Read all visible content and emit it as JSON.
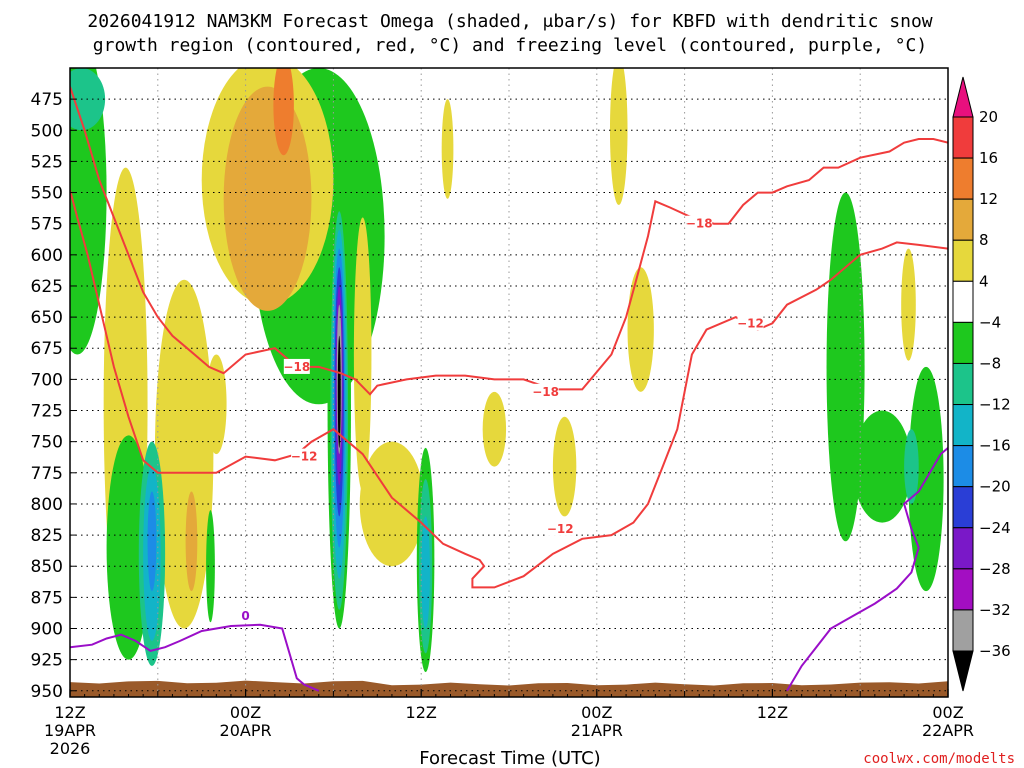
{
  "chart_data": {
    "type": "heatmap",
    "title_line1": "2026041912 NAM3KM Forecast Omega (shaded, μbar/s) for KBFD with dendritic snow",
    "title_line2": "growth region (contoured, red, °C) and freezing level (contoured, purple, °C)",
    "xlabel": "Forecast Time (UTC)",
    "credit": "coolwx.com/modelts",
    "x_ticks": [
      {
        "h": 0,
        "l1": "12Z",
        "l2": "19APR",
        "l3": "2026"
      },
      {
        "h": 12,
        "l1": "00Z",
        "l2": "20APR",
        "l3": ""
      },
      {
        "h": 24,
        "l1": "12Z",
        "l2": "",
        "l3": ""
      },
      {
        "h": 36,
        "l1": "00Z",
        "l2": "21APR",
        "l3": ""
      },
      {
        "h": 48,
        "l1": "12Z",
        "l2": "",
        "l3": ""
      },
      {
        "h": 60,
        "l1": "00Z",
        "l2": "22APR",
        "l3": ""
      }
    ],
    "xlim": [
      0,
      60
    ],
    "ylim": [
      955,
      450
    ],
    "y_ticks": [
      475,
      500,
      525,
      550,
      575,
      600,
      625,
      650,
      675,
      700,
      725,
      750,
      775,
      800,
      825,
      850,
      875,
      900,
      925,
      950
    ],
    "colorbar": {
      "levels": [
        -36,
        -32,
        -28,
        -24,
        -20,
        -16,
        -12,
        -8,
        -4,
        4,
        8,
        12,
        16,
        20
      ],
      "labels": [
        "20",
        "16",
        "12",
        "8",
        "4",
        "−4",
        "−8",
        "−12",
        "−16",
        "−20",
        "−24",
        "−28",
        "−32",
        "−36"
      ],
      "colors": [
        {
          "min": 20,
          "max": 24,
          "color": "#e8107e"
        },
        {
          "min": 16,
          "max": 20,
          "color": "#f03c3c"
        },
        {
          "min": 12,
          "max": 16,
          "color": "#ee7d2e"
        },
        {
          "min": 8,
          "max": 12,
          "color": "#e4a93a"
        },
        {
          "min": 4,
          "max": 8,
          "color": "#e6d83c"
        },
        {
          "min": -4,
          "max": 4,
          "color": "#ffffff"
        },
        {
          "min": -8,
          "max": -4,
          "color": "#1ec81e"
        },
        {
          "min": -12,
          "max": -8,
          "color": "#1cc48a"
        },
        {
          "min": -16,
          "max": -12,
          "color": "#12b4c8"
        },
        {
          "min": -20,
          "max": -16,
          "color": "#1c8ce6"
        },
        {
          "min": -24,
          "max": -20,
          "color": "#2a3ed6"
        },
        {
          "min": -28,
          "max": -24,
          "color": "#7a18c8"
        },
        {
          "min": -32,
          "max": -28,
          "color": "#a30ec2"
        },
        {
          "min": -36,
          "max": -32,
          "color": "#a0a0a0"
        },
        {
          "min": -40,
          "max": -36,
          "color": "#000000"
        }
      ]
    },
    "omega_regions": [
      {
        "value": -8,
        "hx": 0.5,
        "p": 550,
        "rx": 2.0,
        "ry": 130
      },
      {
        "value": -10,
        "hx": 0.8,
        "p": 475,
        "rx": 1.6,
        "ry": 25
      },
      {
        "value": -6,
        "hx": 17.0,
        "p": 585,
        "rx": 4.5,
        "ry": 135
      },
      {
        "value": 6,
        "hx": 13.5,
        "p": 540,
        "rx": 4.5,
        "ry": 100
      },
      {
        "value": 9,
        "hx": 13.5,
        "p": 555,
        "rx": 3.0,
        "ry": 90
      },
      {
        "value": 13,
        "hx": 14.6,
        "p": 480,
        "rx": 0.7,
        "ry": 40
      },
      {
        "value": 6,
        "hx": 3.8,
        "p": 720,
        "rx": 1.5,
        "ry": 190
      },
      {
        "value": 6,
        "hx": 7.8,
        "p": 760,
        "rx": 2.0,
        "ry": 140
      },
      {
        "value": 6,
        "hx": 10.0,
        "p": 720,
        "rx": 0.7,
        "ry": 40
      },
      {
        "value": 6,
        "hx": 20.0,
        "p": 680,
        "rx": 0.6,
        "ry": 110
      },
      {
        "value": 6,
        "hx": 22.0,
        "p": 800,
        "rx": 2.2,
        "ry": 50
      },
      {
        "value": 6,
        "hx": 25.8,
        "p": 515,
        "rx": 0.4,
        "ry": 40
      },
      {
        "value": 6,
        "hx": 29.0,
        "p": 740,
        "rx": 0.8,
        "ry": 30
      },
      {
        "value": 6,
        "hx": 33.8,
        "p": 770,
        "rx": 0.8,
        "ry": 40
      },
      {
        "value": 6,
        "hx": 37.5,
        "p": 500,
        "rx": 0.6,
        "ry": 60
      },
      {
        "value": 6,
        "hx": 39.0,
        "p": 660,
        "rx": 0.9,
        "ry": 50
      },
      {
        "value": 6,
        "hx": 57.3,
        "p": 640,
        "rx": 0.5,
        "ry": 45
      },
      {
        "value": 9,
        "hx": 8.3,
        "p": 830,
        "rx": 0.4,
        "ry": 40
      },
      {
        "value": -6,
        "hx": 4.0,
        "p": 835,
        "rx": 1.5,
        "ry": 90
      },
      {
        "value": -10,
        "hx": 5.6,
        "p": 840,
        "rx": 0.9,
        "ry": 90
      },
      {
        "value": -14,
        "hx": 5.6,
        "p": 840,
        "rx": 0.6,
        "ry": 70
      },
      {
        "value": -18,
        "hx": 5.6,
        "p": 830,
        "rx": 0.3,
        "ry": 40
      },
      {
        "value": -6,
        "hx": 9.6,
        "p": 850,
        "rx": 0.3,
        "ry": 45
      },
      {
        "value": -6,
        "hx": 18.4,
        "p": 720,
        "rx": 0.8,
        "ry": 180
      },
      {
        "value": -10,
        "hx": 18.4,
        "p": 725,
        "rx": 0.6,
        "ry": 160
      },
      {
        "value": -14,
        "hx": 18.4,
        "p": 720,
        "rx": 0.5,
        "ry": 140
      },
      {
        "value": -18,
        "hx": 18.4,
        "p": 715,
        "rx": 0.4,
        "ry": 120
      },
      {
        "value": -22,
        "hx": 18.4,
        "p": 710,
        "rx": 0.32,
        "ry": 100
      },
      {
        "value": -26,
        "hx": 18.4,
        "p": 705,
        "rx": 0.24,
        "ry": 80
      },
      {
        "value": -34,
        "hx": 18.4,
        "p": 700,
        "rx": 0.17,
        "ry": 60
      },
      {
        "value": -38,
        "hx": 18.4,
        "p": 710,
        "rx": 0.1,
        "ry": 45
      },
      {
        "value": -6,
        "hx": 24.3,
        "p": 845,
        "rx": 0.6,
        "ry": 90
      },
      {
        "value": -10,
        "hx": 24.3,
        "p": 850,
        "rx": 0.45,
        "ry": 70
      },
      {
        "value": -14,
        "hx": 24.3,
        "p": 855,
        "rx": 0.3,
        "ry": 45
      },
      {
        "value": -6,
        "hx": 53.0,
        "p": 690,
        "rx": 1.3,
        "ry": 140
      },
      {
        "value": -6,
        "hx": 55.5,
        "p": 770,
        "rx": 2.0,
        "ry": 45
      },
      {
        "value": -6,
        "hx": 58.5,
        "p": 780,
        "rx": 1.2,
        "ry": 90
      },
      {
        "value": -10,
        "hx": 57.5,
        "p": 770,
        "rx": 0.5,
        "ry": 30
      }
    ],
    "contours": [
      {
        "name": "-12",
        "color": "#f03c3c",
        "labels": [
          {
            "h": 16.0,
            "p": 762,
            "text": "−12"
          },
          {
            "h": 33.5,
            "p": 820,
            "text": "−12"
          },
          {
            "h": 46.5,
            "p": 655,
            "text": "−12"
          }
        ],
        "points": [
          [
            0.0,
            548
          ],
          [
            0.5,
            570
          ],
          [
            1.2,
            600
          ],
          [
            2.0,
            640
          ],
          [
            3.0,
            690
          ],
          [
            4.0,
            730
          ],
          [
            5.0,
            765
          ],
          [
            6.0,
            775
          ],
          [
            8.0,
            775
          ],
          [
            10.0,
            775
          ],
          [
            12.0,
            762
          ],
          [
            14.0,
            765
          ],
          [
            15.5,
            760
          ],
          [
            16.5,
            750
          ],
          [
            18.0,
            740
          ],
          [
            20.0,
            760
          ],
          [
            22.0,
            795
          ],
          [
            24.0,
            815
          ],
          [
            25.5,
            832
          ],
          [
            27.0,
            840
          ],
          [
            28.0,
            845
          ],
          [
            28.3,
            850
          ],
          [
            27.5,
            860
          ],
          [
            27.5,
            867
          ],
          [
            29.0,
            867
          ],
          [
            31.0,
            858
          ],
          [
            33.0,
            840
          ],
          [
            35.0,
            828
          ],
          [
            37.0,
            825
          ],
          [
            38.5,
            815
          ],
          [
            39.5,
            800
          ],
          [
            40.5,
            770
          ],
          [
            41.5,
            740
          ],
          [
            42.0,
            710
          ],
          [
            42.5,
            680
          ],
          [
            43.5,
            660
          ],
          [
            45.5,
            650
          ],
          [
            47.0,
            660
          ],
          [
            48.0,
            655
          ],
          [
            49.0,
            640
          ],
          [
            51.0,
            628
          ],
          [
            52.0,
            620
          ],
          [
            54.0,
            600
          ],
          [
            55.5,
            595
          ],
          [
            56.5,
            590
          ],
          [
            58.0,
            592
          ],
          [
            60.0,
            595
          ]
        ]
      },
      {
        "name": "-18",
        "color": "#f03c3c",
        "labels": [
          {
            "h": 15.5,
            "p": 690,
            "text": "−18"
          },
          {
            "h": 32.5,
            "p": 710,
            "text": "−18"
          },
          {
            "h": 43.0,
            "p": 575,
            "text": "−18"
          }
        ],
        "points": [
          [
            0.0,
            465
          ],
          [
            1.0,
            500
          ],
          [
            2.0,
            540
          ],
          [
            3.0,
            570
          ],
          [
            4.0,
            600
          ],
          [
            5.0,
            630
          ],
          [
            6.0,
            650
          ],
          [
            7.0,
            665
          ],
          [
            8.0,
            675
          ],
          [
            9.5,
            690
          ],
          [
            10.5,
            695
          ],
          [
            12.0,
            680
          ],
          [
            14.0,
            675
          ],
          [
            15.5,
            690
          ],
          [
            17.0,
            690
          ],
          [
            18.5,
            695
          ],
          [
            19.5,
            700
          ],
          [
            20.5,
            712
          ],
          [
            21.0,
            705
          ],
          [
            23.0,
            700
          ],
          [
            25.0,
            697
          ],
          [
            27.0,
            697
          ],
          [
            29.0,
            700
          ],
          [
            31.0,
            700
          ],
          [
            33.0,
            708
          ],
          [
            35.0,
            708
          ],
          [
            37.0,
            680
          ],
          [
            38.0,
            650
          ],
          [
            38.7,
            620
          ],
          [
            39.5,
            585
          ],
          [
            40.0,
            557
          ],
          [
            41.0,
            562
          ],
          [
            42.5,
            570
          ],
          [
            44.0,
            575
          ],
          [
            45.0,
            575
          ],
          [
            46.0,
            560
          ],
          [
            47.0,
            550
          ],
          [
            48.0,
            550
          ],
          [
            49.0,
            545
          ],
          [
            50.5,
            540
          ],
          [
            51.5,
            530
          ],
          [
            52.5,
            530
          ],
          [
            54.0,
            522
          ],
          [
            56.0,
            517
          ],
          [
            57.0,
            510
          ],
          [
            58.0,
            507
          ],
          [
            59.0,
            507
          ],
          [
            60.0,
            510
          ]
        ]
      },
      {
        "name": "0",
        "color": "#9a0ec8",
        "labels": [
          {
            "h": 12.0,
            "p": 890,
            "text": "0"
          }
        ],
        "points": [
          [
            0.0,
            915
          ],
          [
            1.5,
            913
          ],
          [
            2.5,
            908
          ],
          [
            3.5,
            905
          ],
          [
            4.5,
            910
          ],
          [
            5.5,
            918
          ],
          [
            6.5,
            915
          ],
          [
            7.5,
            910
          ],
          [
            9.0,
            902
          ],
          [
            11.0,
            898
          ],
          [
            13.0,
            897
          ],
          [
            14.5,
            900
          ],
          [
            15.0,
            920
          ],
          [
            15.5,
            940
          ],
          [
            16.0,
            945
          ],
          [
            17.0,
            950
          ]
        ]
      },
      {
        "name": "0-east",
        "color": "#9a0ec8",
        "labels": [],
        "points": [
          [
            49.0,
            950
          ],
          [
            50.0,
            930
          ],
          [
            51.0,
            915
          ],
          [
            52.0,
            900
          ],
          [
            53.5,
            890
          ],
          [
            55.0,
            880
          ],
          [
            56.5,
            868
          ],
          [
            57.5,
            855
          ],
          [
            58.0,
            835
          ],
          [
            57.5,
            820
          ],
          [
            57.0,
            800
          ],
          [
            58.0,
            790
          ],
          [
            59.0,
            770
          ],
          [
            59.5,
            760
          ],
          [
            60.0,
            755
          ]
        ]
      }
    ],
    "terrain": {
      "color": "#9a5a2a",
      "top_pressure": 943
    }
  }
}
